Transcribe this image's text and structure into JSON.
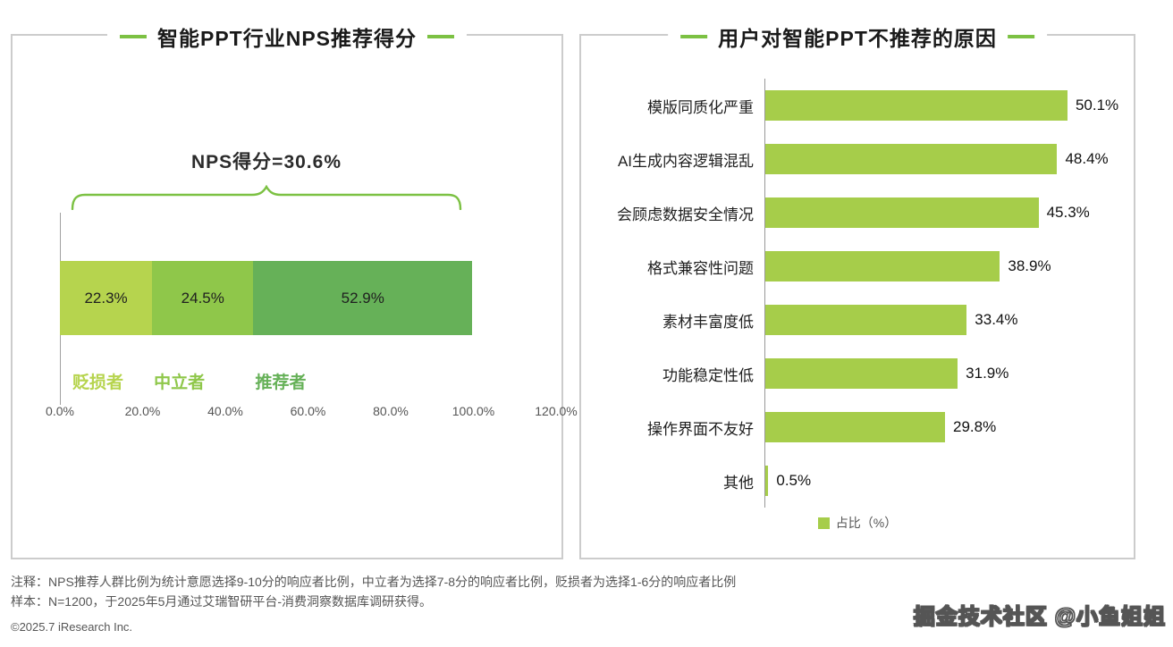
{
  "theme": {
    "accent_green": "#7cc143"
  },
  "panels": {
    "left": {
      "title": "智能PPT行业NPS推荐得分",
      "nps_annotation": "NPS得分=30.6%"
    },
    "right": {
      "title": "用户对智能PPT不推荐的原因",
      "legend": "占比（%）"
    }
  },
  "chart_data": [
    {
      "type": "bar",
      "orientation": "horizontal-stacked",
      "title": "智能PPT行业NPS推荐得分",
      "annotation": "NPS得分=30.6%",
      "categories": [
        "贬损者",
        "中立者",
        "推荐者"
      ],
      "values": [
        22.3,
        24.5,
        52.9
      ],
      "value_labels": [
        "22.3%",
        "24.5%",
        "52.9%"
      ],
      "colors": [
        "#b6d44e",
        "#8fc74a",
        "#66b158"
      ],
      "xlim": [
        0,
        120
      ],
      "x_ticks": [
        {
          "value": 0,
          "label": "0.0%"
        },
        {
          "value": 20,
          "label": "20.0%"
        },
        {
          "value": 40,
          "label": "40.0%"
        },
        {
          "value": 60,
          "label": "60.0%"
        },
        {
          "value": 80,
          "label": "80.0%"
        },
        {
          "value": 100,
          "label": "100.0%"
        },
        {
          "value": 120,
          "label": "120.0%"
        }
      ],
      "grid": false
    },
    {
      "type": "bar",
      "orientation": "horizontal",
      "title": "用户对智能PPT不推荐的原因",
      "categories": [
        "模版同质化严重",
        "AI生成内容逻辑混乱",
        "会顾虑数据安全情况",
        "格式兼容性问题",
        "素材丰富度低",
        "功能稳定性低",
        "操作界面不友好",
        "其他"
      ],
      "values": [
        50.1,
        48.4,
        45.3,
        38.9,
        33.4,
        31.9,
        29.8,
        0.5
      ],
      "value_labels": [
        "50.1%",
        "48.4%",
        "45.3%",
        "38.9%",
        "33.4%",
        "31.9%",
        "29.8%",
        "0.5%"
      ],
      "bar_color": "#a6cd4a",
      "xlim": [
        0,
        55
      ],
      "legend": "占比（%）",
      "legend_position": "bottom",
      "grid": false
    }
  ],
  "notes": {
    "line1": "注释：NPS推荐人群比例为统计意愿选择9-10分的响应者比例，中立者为选择7-8分的响应者比例，贬损者为选择1-6分的响应者比例",
    "line2": "样本：N=1200，于2025年5月通过艾瑞智研平台-消费洞察数据库调研获得。"
  },
  "footer": {
    "copyright": "©2025.7 iResearch Inc."
  },
  "watermark": "掘金技术社区 @小鱼姐姐"
}
